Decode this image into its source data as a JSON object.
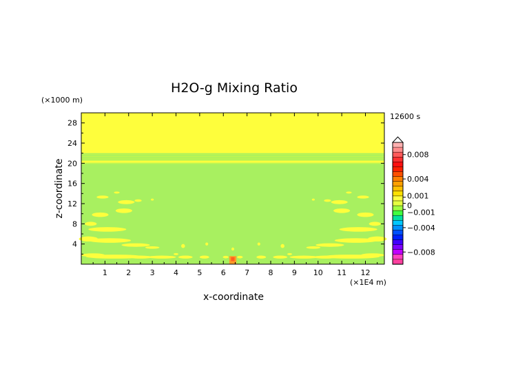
{
  "chart_data": {
    "type": "heatmap",
    "title": "H2O-g Mixing Ratio",
    "xlabel": "x-coordinate",
    "ylabel": "z-coordinate",
    "x_units": "(×1E4 m)",
    "y_units": "(×1000 m)",
    "time_label": "12600 s",
    "xlim": [
      0,
      12.8
    ],
    "ylim": [
      0,
      30
    ],
    "x_ticks": [
      1,
      2,
      3,
      4,
      5,
      6,
      7,
      8,
      9,
      10,
      11,
      12
    ],
    "y_ticks": [
      4,
      8,
      12,
      16,
      20,
      24,
      28
    ],
    "field": {
      "background": "green (~0)",
      "upper_band": {
        "from_z": 22,
        "to_z": 30,
        "level": "slightly positive (yellow)"
      },
      "thin_band_z": 20.3
    },
    "anomalies": [
      {
        "x": 6.4,
        "z": 0.8,
        "width": 0.3,
        "height": 1.6,
        "color": "#ff9c28"
      },
      {
        "x": 6.4,
        "z": 1.0,
        "width": 0.15,
        "height": 0.8,
        "color": "#ff6020"
      }
    ],
    "colorbar": {
      "tick_labels": [
        "0.008",
        "0.004",
        "0.001",
        "0",
        "−0.001",
        "−0.004",
        "−0.008"
      ],
      "tick_values": [
        0.008,
        0.004,
        0.001,
        0,
        -0.001,
        -0.004,
        -0.008
      ],
      "range": [
        -0.01,
        0.01
      ],
      "colors_top_to_bottom": [
        "#ffb0b0",
        "#ff8c8c",
        "#ff5a5a",
        "#ff3030",
        "#ff1010",
        "#ff2000",
        "#ff5000",
        "#ff8000",
        "#ffa000",
        "#ffc000",
        "#ffe000",
        "#ffff40",
        "#e6ff40",
        "#a0ff40",
        "#40ff40",
        "#00e0a0",
        "#00c8ff",
        "#0090ff",
        "#0050ff",
        "#0020ff",
        "#4000ff",
        "#8000ff",
        "#c000ff",
        "#ff40c0",
        "#ff40a0"
      ]
    },
    "colors": {
      "background": "#a8f060",
      "upper": "#fefe3c",
      "blob": "#fefe3c",
      "orange": "#ffa030"
    }
  }
}
